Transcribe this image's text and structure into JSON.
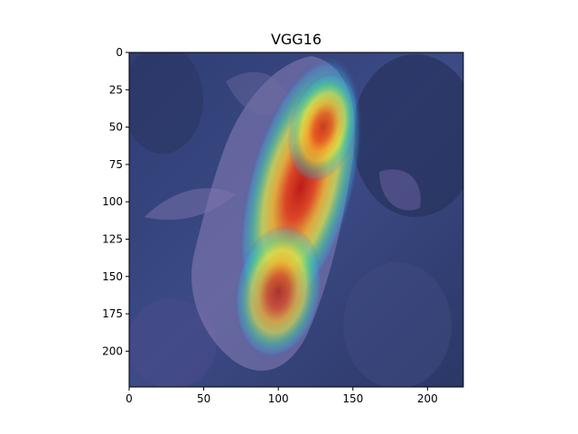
{
  "figure": {
    "title": "VGG16"
  },
  "chart_data": {
    "type": "heatmap",
    "title": "VGG16",
    "xlabel": "",
    "ylabel": "",
    "xlim": [
      0,
      224
    ],
    "ylim": [
      224,
      0
    ],
    "xticks": [
      0,
      50,
      100,
      150,
      200
    ],
    "yticks": [
      0,
      25,
      50,
      75,
      100,
      125,
      150,
      175,
      200
    ],
    "grid": false,
    "colormap": "jet",
    "overlay": "Grad-CAM activation heatmap over leaf photograph",
    "activation_hotspots": [
      {
        "x": 115,
        "y": 90,
        "rx": 22,
        "ry": 60,
        "rotation": 15,
        "intensity": 1.0
      },
      {
        "x": 100,
        "y": 160,
        "rx": 18,
        "ry": 30,
        "rotation": 10,
        "intensity": 0.85
      },
      {
        "x": 130,
        "y": 50,
        "rx": 14,
        "ry": 25,
        "rotation": 15,
        "intensity": 0.8
      }
    ],
    "colors": {
      "background_low": "#3b4a8a",
      "high": "#d9261c",
      "mid": "#f5c431",
      "low_mid": "#55d58a",
      "leaf_overlay": "#8c7fb5"
    }
  }
}
